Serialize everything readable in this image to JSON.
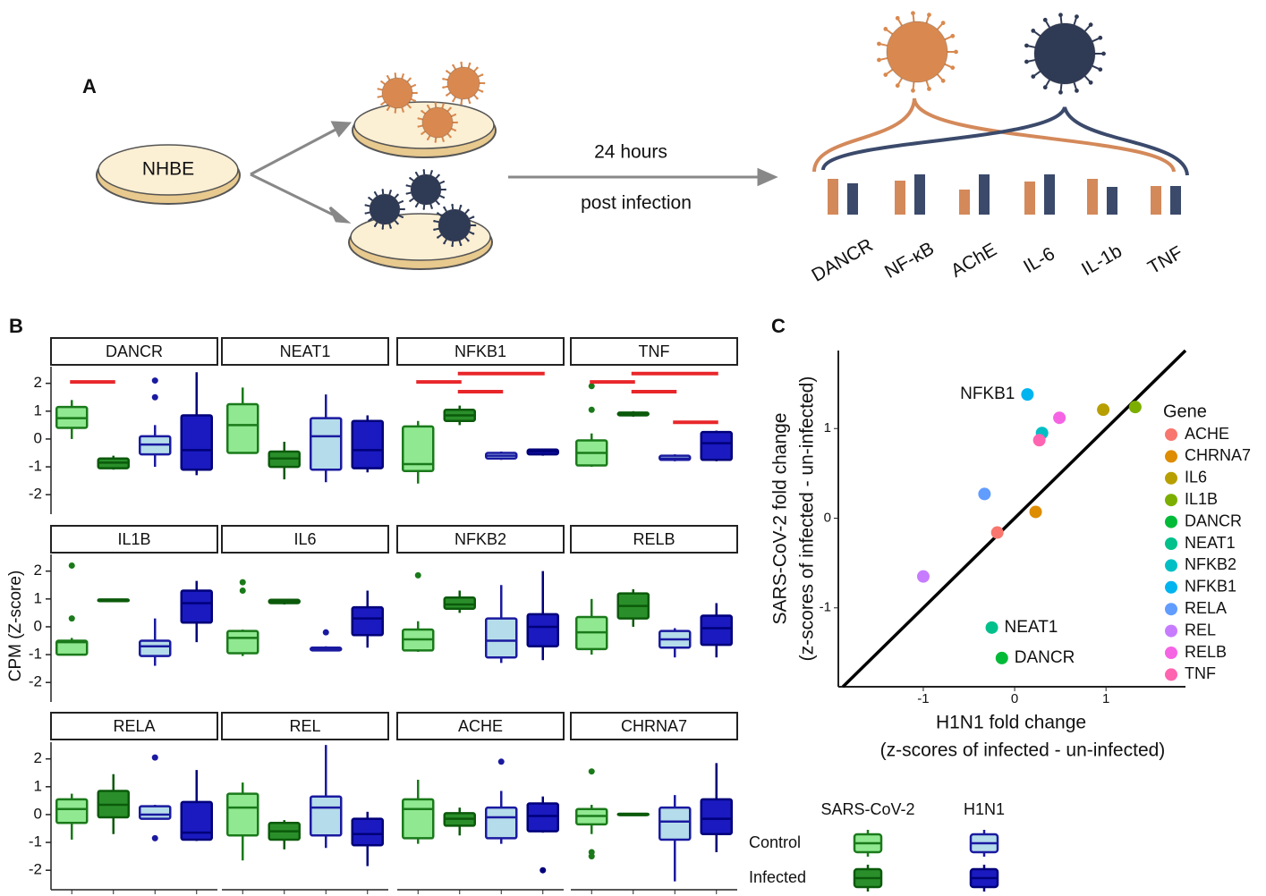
{
  "panel_a": {
    "label": "A",
    "cell": "NHBE",
    "time": "24 hours",
    "note": "post infection"
  },
  "chart_data": [
    {
      "type": "bar",
      "categories": [
        "DANCR",
        "NF-κB",
        "AChE",
        "IL-6",
        "IL-1b",
        "TNF"
      ],
      "series": [
        {
          "color": "#d4895a",
          "values": [
            4.0,
            3.8,
            2.8,
            3.7,
            4.0,
            3.2
          ]
        },
        {
          "color": "#3b4a6b",
          "values": [
            3.5,
            4.5,
            4.5,
            4.5,
            3.1,
            3.2
          ]
        }
      ]
    },
    {
      "type": "box",
      "label": "B",
      "y_label": "CPM (Z-score)",
      "ylim": [
        -2.7,
        2.6
      ],
      "yticks": [
        -2,
        -1,
        0,
        1,
        2
      ],
      "series": [
        {
          "fill": "#90e890",
          "stroke": "#1a7a1a"
        },
        {
          "fill": "#2a8f2a",
          "stroke": "#0b5a0b"
        },
        {
          "fill": "#b5dcea",
          "stroke": "#1a1aa0"
        },
        {
          "fill": "#1a1ac0",
          "stroke": "#00007a"
        }
      ],
      "legend": {
        "columns": [
          "SARS-CoV-2",
          "H1N1"
        ],
        "rows": [
          "Control",
          "Infected"
        ]
      },
      "facets": [
        {
          "name": "DANCR",
          "boxes": [
            {
              "low": 0,
              "q1": 0.4,
              "median": 0.75,
              "q3": 1.15,
              "high": 1.4,
              "outliers": []
            },
            {
              "low": -1.1,
              "q1": -1.05,
              "median": -0.85,
              "q3": -0.7,
              "high": -0.6,
              "outliers": []
            },
            {
              "low": -1,
              "q1": -0.55,
              "median": -0.2,
              "q3": 0.1,
              "high": 0.5,
              "outliers": [
                1.5,
                2.1
              ]
            },
            {
              "low": -1.3,
              "q1": -1.1,
              "median": -0.4,
              "q3": 0.85,
              "high": 2.4,
              "outliers": []
            }
          ],
          "significance": [
            {
              "from": 0,
              "to": 1,
              "y": 2.05
            }
          ]
        },
        {
          "name": "NEAT1",
          "boxes": [
            {
              "low": -0.5,
              "q1": -0.5,
              "median": 0.5,
              "q3": 1.25,
              "high": 1.85,
              "outliers": []
            },
            {
              "low": -1.45,
              "q1": -1.0,
              "median": -0.7,
              "q3": -0.45,
              "high": -0.1,
              "outliers": []
            },
            {
              "low": -1.55,
              "q1": -1.1,
              "median": 0.1,
              "q3": 0.75,
              "high": 1.6,
              "outliers": []
            },
            {
              "low": -1.2,
              "q1": -1.05,
              "median": -0.4,
              "q3": 0.65,
              "high": 0.85,
              "outliers": []
            }
          ],
          "significance": []
        },
        {
          "name": "NFKB1",
          "boxes": [
            {
              "low": -1.6,
              "q1": -1.15,
              "median": -0.9,
              "q3": 0.45,
              "high": 0.65,
              "outliers": []
            },
            {
              "low": 0.5,
              "q1": 0.65,
              "median": 0.85,
              "q3": 1.05,
              "high": 1.2,
              "outliers": []
            },
            {
              "low": -0.75,
              "q1": -0.7,
              "median": -0.6,
              "q3": -0.5,
              "high": -0.45,
              "outliers": []
            },
            {
              "low": -0.6,
              "q1": -0.55,
              "median": -0.45,
              "q3": -0.38,
              "high": -0.35,
              "outliers": []
            }
          ],
          "significance": [
            {
              "from": 0,
              "to": 1,
              "y": 2.05
            },
            {
              "from": 1,
              "to": 2,
              "y": 1.7
            },
            {
              "from": 1,
              "to": 3,
              "y": 2.35
            }
          ]
        },
        {
          "name": "TNF",
          "boxes": [
            {
              "low": -1,
              "q1": -0.95,
              "median": -0.5,
              "q3": -0.05,
              "high": 0.2,
              "outliers": [
                1.05,
                1.9
              ]
            },
            {
              "low": 0.8,
              "q1": 0.85,
              "median": 0.9,
              "q3": 0.95,
              "high": 1.0,
              "outliers": []
            },
            {
              "low": -0.8,
              "q1": -0.75,
              "median": -0.7,
              "q3": -0.6,
              "high": -0.55,
              "outliers": []
            },
            {
              "low": -0.8,
              "q1": -0.75,
              "median": -0.15,
              "q3": 0.25,
              "high": 0.3,
              "outliers": []
            }
          ],
          "significance": [
            {
              "from": 0,
              "to": 1,
              "y": 2.05
            },
            {
              "from": 1,
              "to": 2,
              "y": 1.7
            },
            {
              "from": 1,
              "to": 3,
              "y": 2.35
            },
            {
              "from": 2,
              "to": 3,
              "y": 0.6
            }
          ]
        },
        {
          "name": "IL1B",
          "boxes": [
            {
              "low": -1,
              "q1": -1,
              "median": -0.55,
              "q3": -0.5,
              "high": -0.4,
              "outliers": [
                0.3,
                2.2
              ]
            },
            {
              "low": 0.9,
              "q1": 0.92,
              "median": 0.95,
              "q3": 0.98,
              "high": 1.0,
              "outliers": []
            },
            {
              "low": -1.4,
              "q1": -1.05,
              "median": -0.7,
              "q3": -0.5,
              "high": 0.3,
              "outliers": []
            },
            {
              "low": -0.55,
              "q1": 0.15,
              "median": 0.85,
              "q3": 1.3,
              "high": 1.65,
              "outliers": []
            }
          ],
          "significance": []
        },
        {
          "name": "IL6",
          "boxes": [
            {
              "low": -1.05,
              "q1": -0.95,
              "median": -0.4,
              "q3": -0.15,
              "high": -0.1,
              "outliers": [
                1.3,
                1.6
              ]
            },
            {
              "low": 0.8,
              "q1": 0.85,
              "median": 0.9,
              "q3": 0.97,
              "high": 1.0,
              "outliers": []
            },
            {
              "low": -0.85,
              "q1": -0.85,
              "median": -0.8,
              "q3": -0.75,
              "high": -0.7,
              "outliers": [
                -0.2
              ]
            },
            {
              "low": -0.75,
              "q1": -0.3,
              "median": 0.3,
              "q3": 0.7,
              "high": 1.3,
              "outliers": []
            }
          ],
          "significance": []
        },
        {
          "name": "NFKB2",
          "boxes": [
            {
              "low": -0.9,
              "q1": -0.85,
              "median": -0.45,
              "q3": -0.1,
              "high": 0.2,
              "outliers": [
                1.85
              ]
            },
            {
              "low": 0.5,
              "q1": 0.65,
              "median": 0.8,
              "q3": 1.05,
              "high": 1.3,
              "outliers": []
            },
            {
              "low": -1.3,
              "q1": -1.1,
              "median": -0.5,
              "q3": 0.3,
              "high": 1.5,
              "outliers": []
            },
            {
              "low": -1.2,
              "q1": -0.7,
              "median": 0.0,
              "q3": 0.45,
              "high": 2.0,
              "outliers": []
            }
          ],
          "significance": []
        },
        {
          "name": "RELB",
          "boxes": [
            {
              "low": -1,
              "q1": -0.8,
              "median": -0.2,
              "q3": 0.35,
              "high": 1.0,
              "outliers": []
            },
            {
              "low": 0,
              "q1": 0.3,
              "median": 0.75,
              "q3": 1.2,
              "high": 1.35,
              "outliers": []
            },
            {
              "low": -1.1,
              "q1": -0.75,
              "median": -0.45,
              "q3": -0.15,
              "high": -0.05,
              "outliers": []
            },
            {
              "low": -1.1,
              "q1": -0.65,
              "median": -0.05,
              "q3": 0.4,
              "high": 0.85,
              "outliers": []
            }
          ],
          "significance": []
        },
        {
          "name": "RELA",
          "boxes": [
            {
              "low": -0.9,
              "q1": -0.3,
              "median": 0.2,
              "q3": 0.55,
              "high": 0.75,
              "outliers": []
            },
            {
              "low": -0.7,
              "q1": -0.1,
              "median": 0.35,
              "q3": 0.85,
              "high": 1.45,
              "outliers": []
            },
            {
              "low": -0.15,
              "q1": -0.15,
              "median": 0.0,
              "q3": 0.3,
              "high": 0.35,
              "outliers": [
                2.05,
                -0.85
              ]
            },
            {
              "low": -0.95,
              "q1": -0.9,
              "median": -0.65,
              "q3": 0.45,
              "high": 1.6,
              "outliers": []
            }
          ],
          "significance": []
        },
        {
          "name": "REL",
          "boxes": [
            {
              "low": -1.65,
              "q1": -0.75,
              "median": 0.25,
              "q3": 0.75,
              "high": 1.15,
              "outliers": []
            },
            {
              "low": -1.25,
              "q1": -0.9,
              "median": -0.6,
              "q3": -0.3,
              "high": -0.2,
              "outliers": []
            },
            {
              "low": -1.2,
              "q1": -0.75,
              "median": 0.25,
              "q3": 0.65,
              "high": 2.5,
              "outliers": []
            },
            {
              "low": -1.85,
              "q1": -1.1,
              "median": -0.7,
              "q3": -0.15,
              "high": 0.1,
              "outliers": []
            }
          ],
          "significance": []
        },
        {
          "name": "ACHE",
          "boxes": [
            {
              "low": -1.05,
              "q1": -0.85,
              "median": 0.2,
              "q3": 0.55,
              "high": 1.25,
              "outliers": []
            },
            {
              "low": -0.75,
              "q1": -0.4,
              "median": -0.15,
              "q3": 0.05,
              "high": 0.25,
              "outliers": []
            },
            {
              "low": -1.05,
              "q1": -0.85,
              "median": -0.1,
              "q3": 0.25,
              "high": 0.85,
              "outliers": [
                1.9
              ]
            },
            {
              "low": -0.65,
              "q1": -0.6,
              "median": -0.05,
              "q3": 0.4,
              "high": 0.65,
              "outliers": [
                -2.0
              ]
            }
          ],
          "significance": []
        },
        {
          "name": "CHRNA7",
          "boxes": [
            {
              "low": -0.7,
              "q1": -0.35,
              "median": -0.05,
              "q3": 0.2,
              "high": 0.35,
              "outliers": [
                1.55,
                -1.35,
                -1.5
              ]
            },
            {
              "low": -0.05,
              "q1": -0.02,
              "median": 0,
              "q3": 0.03,
              "high": 0.05,
              "outliers": []
            },
            {
              "low": -2.4,
              "q1": -0.9,
              "median": -0.25,
              "q3": 0.25,
              "high": 0.7,
              "outliers": []
            },
            {
              "low": -1.35,
              "q1": -0.7,
              "median": -0.15,
              "q3": 0.55,
              "high": 1.85,
              "outliers": []
            }
          ],
          "significance": []
        }
      ]
    },
    {
      "type": "scatter",
      "label": "C",
      "x_label": [
        "H1N1 fold change",
        "(z-scores of infected - un-infected)"
      ],
      "y_label": [
        "SARS-CoV-2 fold change",
        "(z-scores of infected - un-infected)"
      ],
      "xlim": [
        -1.93,
        1.87
      ],
      "ylim": [
        -1.88,
        1.87
      ],
      "xticks": [
        -1,
        0,
        1
      ],
      "yticks": [
        -1,
        0,
        1
      ],
      "legend_title": "Gene",
      "series": [
        {
          "name": "ACHE",
          "color": "#f8766d",
          "x": -0.19,
          "y": -0.16
        },
        {
          "name": "CHRNA7",
          "color": "#de8c00",
          "x": 0.23,
          "y": 0.07
        },
        {
          "name": "IL6",
          "color": "#b79f00",
          "x": 0.97,
          "y": 1.21
        },
        {
          "name": "IL1B",
          "color": "#7cae00",
          "x": 1.32,
          "y": 1.24
        },
        {
          "name": "DANCR",
          "color": "#00ba38",
          "x": -0.14,
          "y": -1.56,
          "label": "DANCR"
        },
        {
          "name": "NEAT1",
          "color": "#00c08b",
          "x": -0.25,
          "y": -1.22,
          "label": "NEAT1"
        },
        {
          "name": "NFKB2",
          "color": "#00bfc4",
          "x": 0.3,
          "y": 0.95
        },
        {
          "name": "NFKB1",
          "color": "#00b4f0",
          "x": 0.14,
          "y": 1.38,
          "label": "NFKB1"
        },
        {
          "name": "RELA",
          "color": "#619cff",
          "x": -0.33,
          "y": 0.27
        },
        {
          "name": "REL",
          "color": "#c77cff",
          "x": -1.0,
          "y": -0.65
        },
        {
          "name": "RELB",
          "color": "#f564e3",
          "x": 0.49,
          "y": 1.12
        },
        {
          "name": "TNF",
          "color": "#ff64b0",
          "x": 0.27,
          "y": 0.87
        }
      ]
    }
  ]
}
